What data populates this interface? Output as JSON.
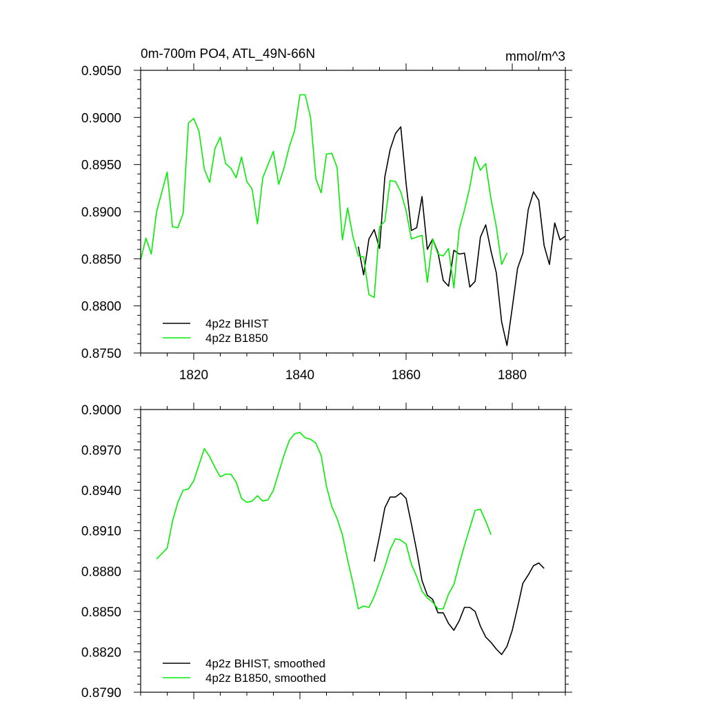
{
  "chart_data": [
    {
      "type": "line",
      "title": "0m-700m PO4, ATL_49N-66N",
      "units": "mmol/m^3",
      "xlim": [
        1810,
        1890
      ],
      "ylim": [
        0.875,
        0.905
      ],
      "xticks": [
        1820,
        1840,
        1860,
        1880
      ],
      "xtick_labels": [
        "1820",
        "1840",
        "1860",
        "1880"
      ],
      "yticks": [
        0.875,
        0.88,
        0.885,
        0.89,
        0.895,
        0.9,
        0.905
      ],
      "ytick_labels": [
        "0.8750",
        "0.8800",
        "0.8850",
        "0.8900",
        "0.8950",
        "0.9000",
        "0.9050"
      ],
      "legend_position": "bottom-left",
      "series": [
        {
          "name": "4p2z BHIST",
          "color": "#000000",
          "x_start": 1851,
          "values": [
            0.8863,
            0.8833,
            0.8871,
            0.8881,
            0.8861,
            0.8937,
            0.8966,
            0.8983,
            0.899,
            0.893,
            0.888,
            0.8883,
            0.8916,
            0.886,
            0.8871,
            0.8857,
            0.8827,
            0.8821,
            0.8859,
            0.8855,
            0.8856,
            0.882,
            0.8826,
            0.8873,
            0.8886,
            0.8858,
            0.8835,
            0.8783,
            0.8758,
            0.8798,
            0.884,
            0.8856,
            0.8902,
            0.8921,
            0.8912,
            0.8864,
            0.8844,
            0.8888,
            0.887,
            0.8874
          ]
        },
        {
          "name": "4p2z B1850",
          "color": "#00ee00",
          "x_start": 1810,
          "values": [
            0.8849,
            0.8872,
            0.8855,
            0.89,
            0.8921,
            0.8942,
            0.8884,
            0.8883,
            0.8898,
            0.8994,
            0.8999,
            0.8985,
            0.8945,
            0.8931,
            0.8967,
            0.8979,
            0.8951,
            0.8946,
            0.8936,
            0.8958,
            0.8932,
            0.8924,
            0.8887,
            0.8936,
            0.895,
            0.8964,
            0.8929,
            0.8946,
            0.8969,
            0.8986,
            0.9024,
            0.9024,
            0.9,
            0.8935,
            0.892,
            0.8961,
            0.8962,
            0.8947,
            0.887,
            0.8904,
            0.8873,
            0.8853,
            0.8852,
            0.8812,
            0.8809,
            0.8884,
            0.889,
            0.8933,
            0.8932,
            0.8921,
            0.8901,
            0.8871,
            0.8873,
            0.8875,
            0.8825,
            0.8871,
            0.8855,
            0.8853,
            0.8861,
            0.8819,
            0.8881,
            0.8902,
            0.8926,
            0.8958,
            0.8944,
            0.8951,
            0.8913,
            0.8884,
            0.8844,
            0.8856
          ]
        }
      ]
    },
    {
      "type": "line",
      "title": "",
      "xlim": [
        1810,
        1890
      ],
      "ylim": [
        0.879,
        0.9
      ],
      "xticks": [
        1820,
        1840,
        1860,
        1880
      ],
      "yticks": [
        0.879,
        0.882,
        0.885,
        0.888,
        0.891,
        0.894,
        0.897,
        0.9
      ],
      "ytick_labels": [
        "0.8790",
        "0.8820",
        "0.8850",
        "0.8880",
        "0.8910",
        "0.8940",
        "0.8970",
        "0.9000"
      ],
      "legend_position": "bottom-left",
      "series": [
        {
          "name": "4p2z BHIST, smoothed",
          "color": "#000000",
          "x_start": 1854,
          "values": [
            0.8887,
            0.8906,
            0.8927,
            0.8935,
            0.8935,
            0.8938,
            0.8934,
            0.8915,
            0.8895,
            0.8873,
            0.8862,
            0.8859,
            0.8849,
            0.8849,
            0.8841,
            0.8836,
            0.8843,
            0.8853,
            0.8853,
            0.885,
            0.8839,
            0.8831,
            0.8827,
            0.8822,
            0.8818,
            0.8824,
            0.8836,
            0.8853,
            0.8871,
            0.8877,
            0.8884,
            0.8886,
            0.8882
          ]
        },
        {
          "name": "4p2z B1850, smoothed",
          "color": "#00ee00",
          "x_start": 1813,
          "values": [
            0.8889,
            0.8893,
            0.8897,
            0.8917,
            0.8931,
            0.894,
            0.8941,
            0.8947,
            0.8959,
            0.8971,
            0.8965,
            0.8957,
            0.895,
            0.8952,
            0.8952,
            0.8946,
            0.8934,
            0.8931,
            0.8932,
            0.8936,
            0.8932,
            0.8933,
            0.894,
            0.8953,
            0.8966,
            0.8977,
            0.8982,
            0.8983,
            0.8979,
            0.8978,
            0.8975,
            0.8966,
            0.8943,
            0.8928,
            0.8919,
            0.8907,
            0.8888,
            0.8871,
            0.8852,
            0.8854,
            0.8853,
            0.8861,
            0.8872,
            0.8883,
            0.8896,
            0.8904,
            0.8903,
            0.89,
            0.8885,
            0.8876,
            0.8865,
            0.886,
            0.8857,
            0.8852,
            0.8852,
            0.8863,
            0.887,
            0.8885,
            0.8899,
            0.8912,
            0.8925,
            0.8926,
            0.8917,
            0.8907
          ]
        }
      ]
    }
  ]
}
